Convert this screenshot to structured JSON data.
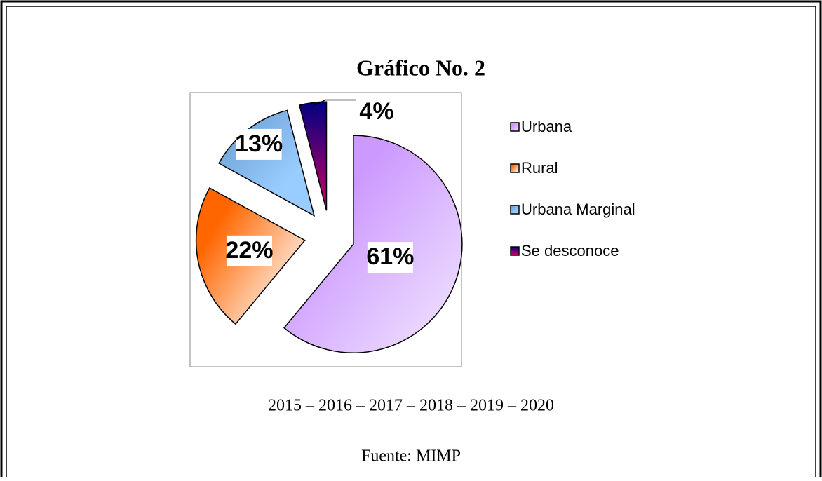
{
  "chart_data": {
    "type": "pie",
    "title": "Gráfico No. 2",
    "subtitle": "2015 – 2016 – 2017 – 2018 – 2019 – 2020",
    "source": "Fuente: MIMP",
    "categories": [
      "Urbana",
      "Rural",
      "Urbana Marginal",
      "Se desconoce"
    ],
    "values": [
      61,
      22,
      13,
      4
    ],
    "value_labels": [
      "61%",
      "22%",
      "13%",
      "4%"
    ],
    "colors": [
      "#cc99ff",
      "#ff6600",
      "#99ccff",
      "#000080"
    ],
    "legend": "right"
  }
}
